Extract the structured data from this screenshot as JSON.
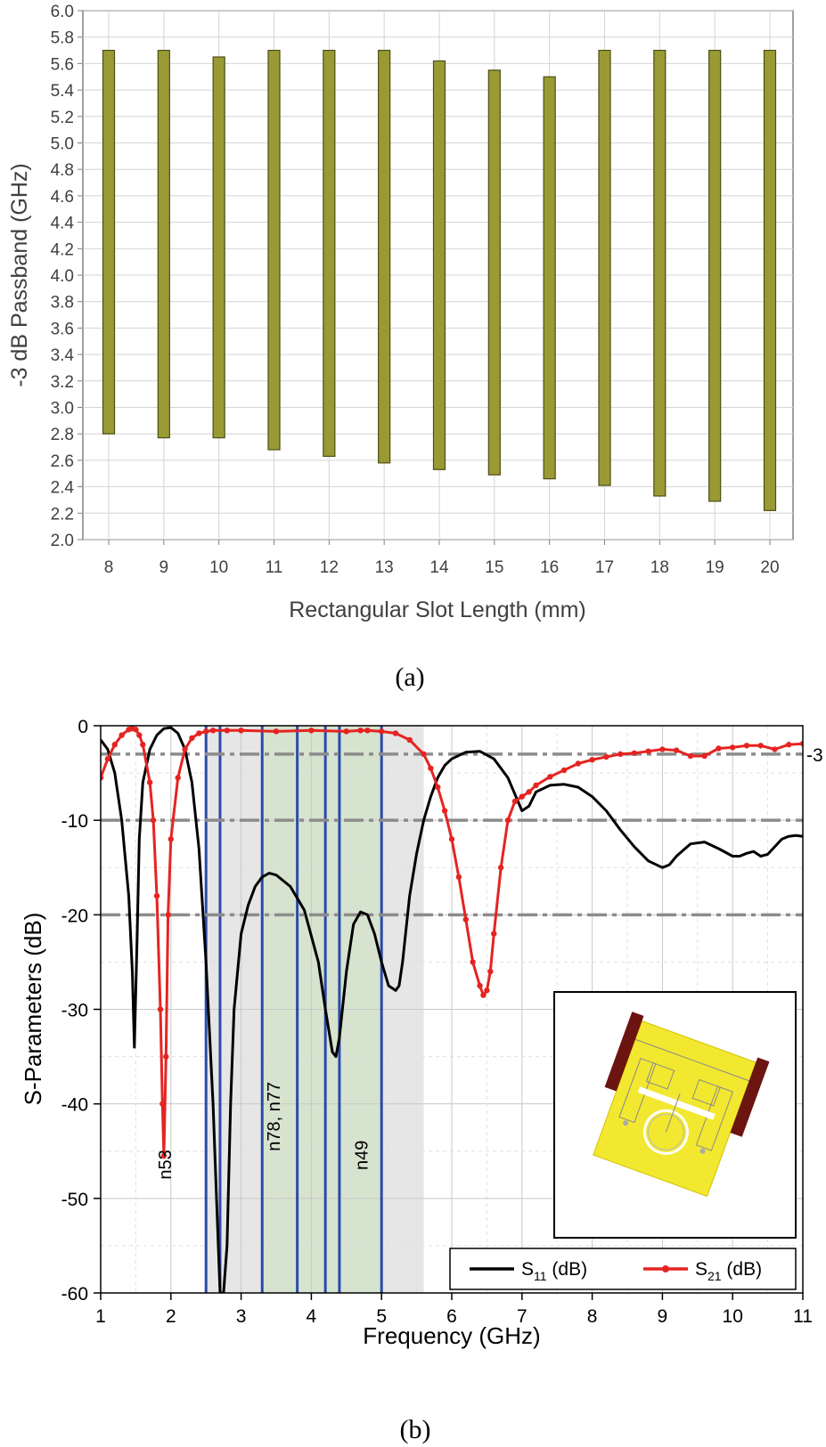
{
  "chart_data": [
    {
      "type": "bar",
      "panel_caption": "(a)",
      "xlabel": "Rectangular Slot Length (mm)",
      "ylabel": "-3 dB Passband (GHz)",
      "ylim": [
        2.0,
        6.0
      ],
      "ytick_step": 0.2,
      "grid": true,
      "bar_color": "#9a9a35",
      "categories": [
        "8",
        "9",
        "10",
        "11",
        "12",
        "13",
        "14",
        "15",
        "16",
        "17",
        "18",
        "19",
        "20"
      ],
      "lower": [
        2.8,
        2.77,
        2.77,
        2.68,
        2.63,
        2.58,
        2.53,
        2.49,
        2.46,
        2.41,
        2.33,
        2.29,
        2.22
      ],
      "upper": [
        5.7,
        5.7,
        5.65,
        5.7,
        5.7,
        5.7,
        5.62,
        5.55,
        5.5,
        5.7,
        5.7,
        5.7,
        5.7
      ]
    },
    {
      "type": "line",
      "panel_caption": "(b)",
      "xlabel": "Frequency (GHz)",
      "ylabel": "S-Parameters (dB)",
      "xlim": [
        1,
        11
      ],
      "ylim": [
        -60,
        0
      ],
      "xticks": [
        1,
        2,
        3,
        4,
        5,
        6,
        7,
        8,
        9,
        10,
        11
      ],
      "yticks": [
        0,
        -10,
        -20,
        -30,
        -40,
        -50,
        -60
      ],
      "grid": true,
      "legend_position": "bottom-right",
      "reference_lines": [
        {
          "y": -3,
          "label": "-3"
        },
        {
          "y": -10,
          "label": ""
        },
        {
          "y": -20,
          "label": ""
        }
      ],
      "shaded_regions": [
        {
          "x0": 2.5,
          "x1": 5.6,
          "color": "#e6e6e6"
        },
        {
          "x0": 3.3,
          "x1": 5.0,
          "color": "#d6e3cf"
        }
      ],
      "band_edges": [
        2.5,
        2.7,
        3.3,
        3.8,
        4.2,
        4.4,
        5.0
      ],
      "band_labels": [
        {
          "text": "n53",
          "x": 2.0,
          "y": -48
        },
        {
          "text": "n78, n77",
          "x": 3.55,
          "y": -45
        },
        {
          "text": "n49",
          "x": 4.8,
          "y": -47
        }
      ],
      "series": [
        {
          "name": "S11 (dB)",
          "legend_main": "S",
          "legend_sub": "11",
          "legend_tail": " (dB)",
          "color": "#000000",
          "marker": "none",
          "x": [
            1.0,
            1.1,
            1.2,
            1.3,
            1.4,
            1.45,
            1.48,
            1.52,
            1.55,
            1.6,
            1.7,
            1.8,
            1.9,
            2.0,
            2.1,
            2.2,
            2.3,
            2.4,
            2.5,
            2.6,
            2.65,
            2.7,
            2.75,
            2.8,
            2.85,
            2.9,
            3.0,
            3.1,
            3.2,
            3.3,
            3.4,
            3.5,
            3.7,
            3.9,
            4.1,
            4.2,
            4.3,
            4.35,
            4.4,
            4.5,
            4.6,
            4.7,
            4.8,
            4.9,
            5.0,
            5.1,
            5.2,
            5.25,
            5.3,
            5.4,
            5.5,
            5.6,
            5.7,
            5.8,
            5.9,
            6.0,
            6.2,
            6.4,
            6.6,
            6.8,
            7.0,
            7.1,
            7.2,
            7.4,
            7.6,
            7.8,
            8.0,
            8.2,
            8.4,
            8.6,
            8.8,
            9.0,
            9.1,
            9.2,
            9.4,
            9.6,
            9.8,
            10.0,
            10.1,
            10.2,
            10.3,
            10.4,
            10.5,
            10.6,
            10.7,
            10.8,
            10.9,
            11.0
          ],
          "y": [
            -1.5,
            -2.5,
            -5.0,
            -10.0,
            -18.0,
            -26.0,
            -34.0,
            -22.0,
            -12.0,
            -6.0,
            -2.5,
            -1.0,
            -0.3,
            -0.2,
            -0.8,
            -2.5,
            -6.0,
            -13.0,
            -25.0,
            -40.0,
            -50.0,
            -60.0,
            -60.0,
            -55.0,
            -40.0,
            -30.0,
            -22.0,
            -19.0,
            -17.0,
            -16.0,
            -15.6,
            -15.8,
            -17.0,
            -19.5,
            -25.0,
            -30.0,
            -34.5,
            -35.0,
            -33.0,
            -26.0,
            -21.0,
            -19.7,
            -20.0,
            -22.0,
            -25.0,
            -27.5,
            -28.0,
            -27.5,
            -25.0,
            -18.0,
            -13.5,
            -10.0,
            -7.5,
            -5.5,
            -4.2,
            -3.5,
            -2.8,
            -2.7,
            -3.5,
            -5.5,
            -9.0,
            -8.5,
            -7.0,
            -6.3,
            -6.2,
            -6.5,
            -7.5,
            -9.0,
            -11.0,
            -12.8,
            -14.3,
            -15.0,
            -14.7,
            -13.8,
            -12.5,
            -12.3,
            -13.0,
            -13.8,
            -13.8,
            -13.5,
            -13.3,
            -13.8,
            -13.6,
            -12.8,
            -12.0,
            -11.7,
            -11.6,
            -11.7
          ]
        },
        {
          "name": "S21 (dB)",
          "legend_main": "S",
          "legend_sub": "21",
          "legend_tail": " (dB)",
          "color": "#e52421",
          "marker": "circle",
          "x": [
            1.0,
            1.1,
            1.2,
            1.3,
            1.4,
            1.45,
            1.5,
            1.55,
            1.6,
            1.7,
            1.75,
            1.8,
            1.85,
            1.88,
            1.9,
            1.93,
            1.96,
            2.0,
            2.1,
            2.2,
            2.3,
            2.4,
            2.5,
            2.6,
            2.8,
            3.0,
            3.5,
            4.0,
            4.5,
            4.7,
            4.8,
            5.0,
            5.2,
            5.4,
            5.6,
            5.7,
            5.8,
            5.9,
            6.0,
            6.1,
            6.2,
            6.3,
            6.4,
            6.45,
            6.5,
            6.55,
            6.6,
            6.7,
            6.8,
            6.9,
            7.0,
            7.1,
            7.2,
            7.4,
            7.6,
            7.8,
            8.0,
            8.2,
            8.4,
            8.6,
            8.8,
            9.0,
            9.2,
            9.4,
            9.6,
            9.8,
            10.0,
            10.2,
            10.4,
            10.6,
            10.8,
            11.0
          ],
          "y": [
            -5.5,
            -3.5,
            -2.0,
            -1.0,
            -0.4,
            -0.3,
            -0.4,
            -1.0,
            -2.0,
            -6.0,
            -10.0,
            -18.0,
            -30.0,
            -40.0,
            -45.5,
            -35.0,
            -20.0,
            -12.0,
            -5.5,
            -2.5,
            -1.3,
            -0.8,
            -0.6,
            -0.5,
            -0.5,
            -0.5,
            -0.6,
            -0.5,
            -0.6,
            -0.5,
            -0.5,
            -0.6,
            -0.8,
            -1.5,
            -3.0,
            -4.5,
            -6.5,
            -9.0,
            -12.0,
            -16.0,
            -20.5,
            -25.0,
            -27.5,
            -28.5,
            -28.0,
            -26.0,
            -22.0,
            -15.0,
            -10.0,
            -8.0,
            -7.5,
            -7.0,
            -6.3,
            -5.4,
            -4.7,
            -4.0,
            -3.6,
            -3.3,
            -3.0,
            -2.9,
            -2.7,
            -2.5,
            -2.6,
            -3.2,
            -3.2,
            -2.4,
            -2.3,
            -2.1,
            -2.1,
            -2.5,
            -2.0,
            -1.9
          ]
        }
      ]
    }
  ]
}
